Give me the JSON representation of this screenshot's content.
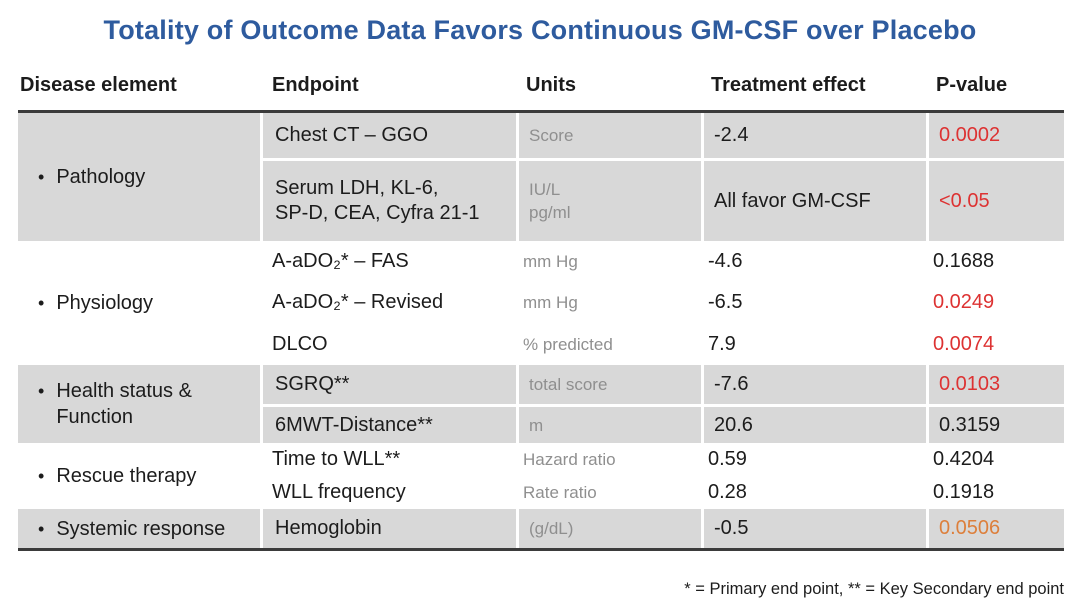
{
  "title": "Totality of Outcome Data Favors Continuous GM-CSF over Placebo",
  "footnote": "* = Primary end point, ** = Key Secondary end point",
  "bullet": "•",
  "colors": {
    "title_blue": "#2e5b9e",
    "row_gray": "#d8d8d8",
    "units_gray": "#8f8f8f",
    "significant_red": "#dd3232",
    "borderline_orange": "#dd7f3b",
    "default_black": "#1c1c1c",
    "table_border_dark": "#3b3b3b"
  },
  "table": {
    "headers": {
      "disease": "Disease element",
      "endpoint": "Endpoint",
      "units": "Units",
      "treatment": "Treatment effect",
      "pvalue": "P-value"
    },
    "sections": [
      {
        "label": "Pathology",
        "rows": [
          {
            "endpoint": "Chest CT – GGO",
            "units": "Score",
            "treatment": "-2.4",
            "pvalue": "0.0002",
            "pvalue_color": "#dd3232"
          },
          {
            "endpoint": "Serum LDH, KL-6,\nSP-D, CEA, Cyfra 21-1",
            "units": "IU/L\npg/ml",
            "treatment": "All favor GM-CSF",
            "pvalue": "<0.05",
            "pvalue_color": "#dd3232"
          }
        ]
      },
      {
        "label": "Physiology",
        "rows": [
          {
            "endpoint": "A-aDO₂* – FAS",
            "units": "mm Hg",
            "treatment": "-4.6",
            "pvalue": "0.1688",
            "pvalue_color": "#1c1c1c"
          },
          {
            "endpoint": "A-aDO₂* – Revised",
            "units": "mm Hg",
            "treatment": "-6.5",
            "pvalue": "0.0249",
            "pvalue_color": "#dd3232"
          },
          {
            "endpoint": "DLCO",
            "units": "% predicted",
            "treatment": "7.9",
            "pvalue": "0.0074",
            "pvalue_color": "#dd3232"
          }
        ]
      },
      {
        "label": "Health status &\nFunction",
        "rows": [
          {
            "endpoint": "SGRQ**",
            "units": "total score",
            "treatment": "-7.6",
            "pvalue": "0.0103",
            "pvalue_color": "#dd3232"
          },
          {
            "endpoint": "6MWT-Distance**",
            "units": "m",
            "treatment": "20.6",
            "pvalue": "0.3159",
            "pvalue_color": "#1c1c1c"
          }
        ]
      },
      {
        "label": "Rescue therapy",
        "rows": [
          {
            "endpoint": "Time to WLL**",
            "units": "Hazard ratio",
            "treatment": "0.59",
            "pvalue": "0.4204",
            "pvalue_color": "#1c1c1c"
          },
          {
            "endpoint": "WLL frequency",
            "units": "Rate ratio",
            "treatment": "0.28",
            "pvalue": "0.1918",
            "pvalue_color": "#1c1c1c"
          }
        ]
      },
      {
        "label": "Systemic response",
        "rows": [
          {
            "endpoint": "Hemoglobin",
            "units": "(g/dL)",
            "treatment": "-0.5",
            "pvalue": "0.0506",
            "pvalue_color": "#dd7f3b"
          }
        ]
      }
    ]
  }
}
